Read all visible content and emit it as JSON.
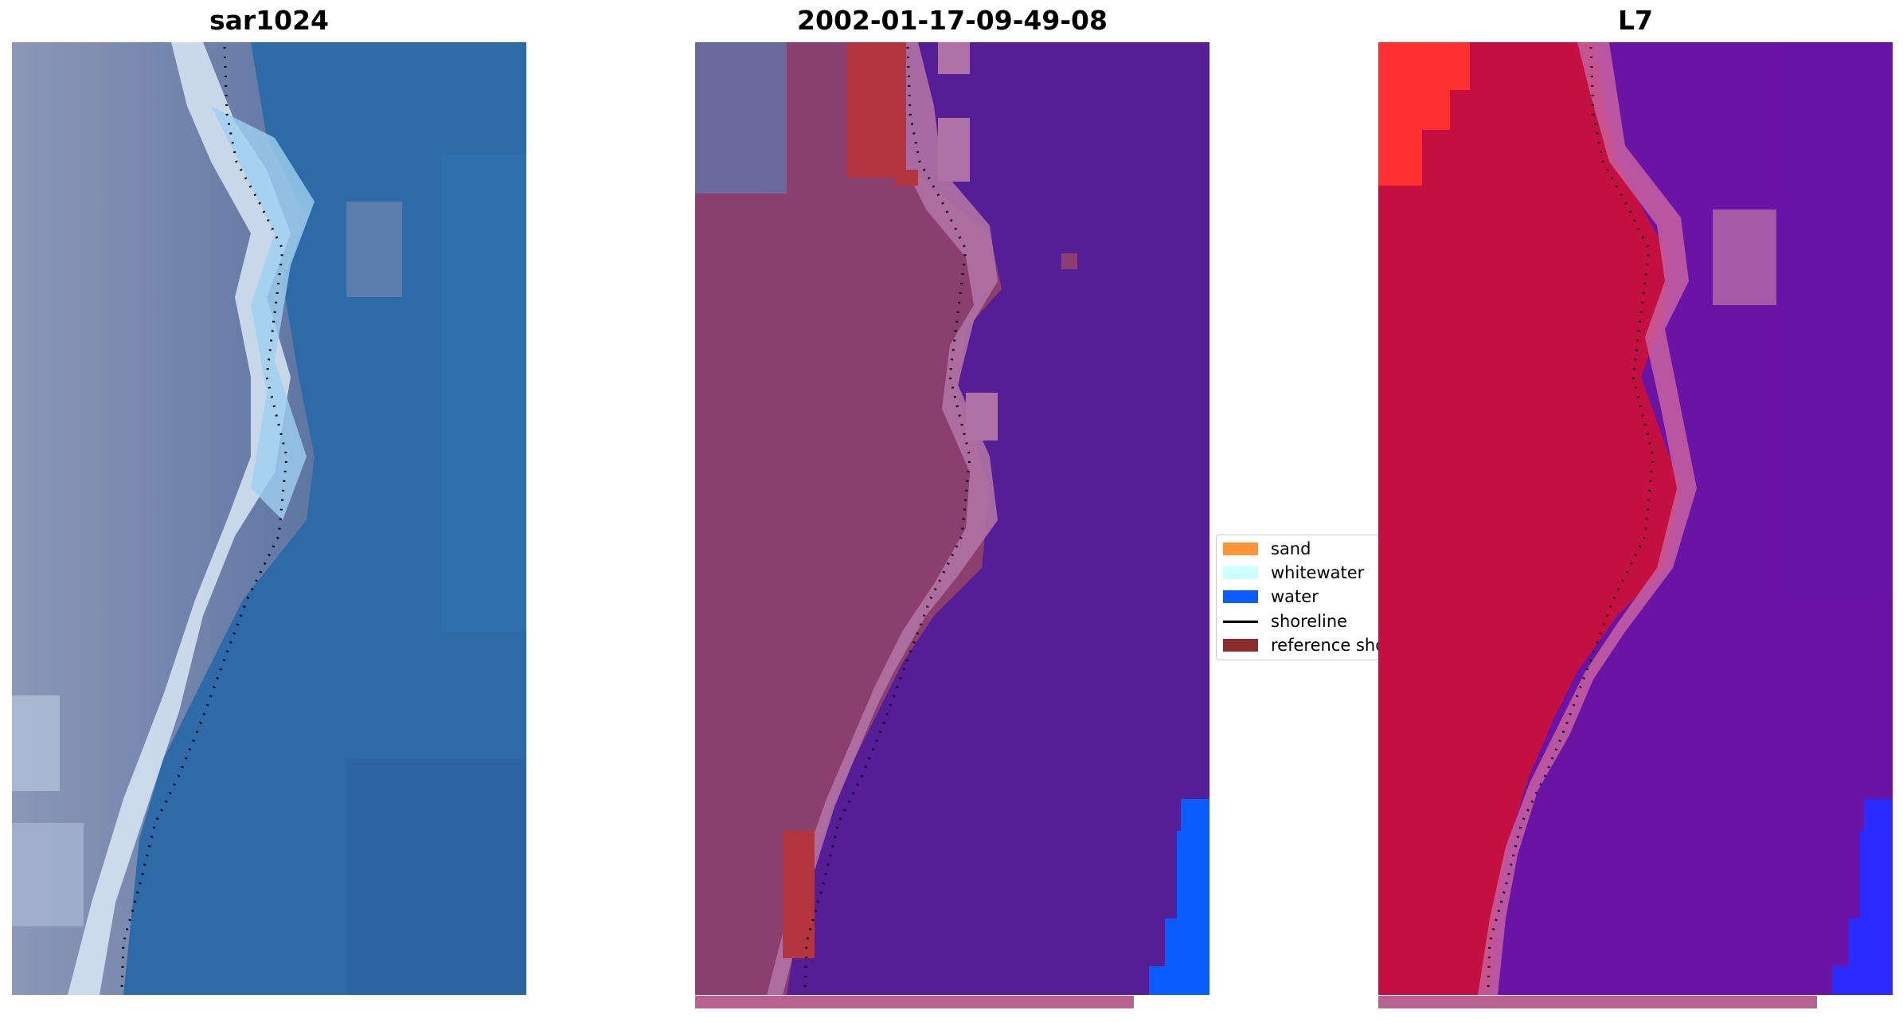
{
  "panels": [
    {
      "title": "sar1024",
      "image": "rgb-satellite-image"
    },
    {
      "title": "2002-01-17-09-49-08",
      "image": "classified-image-overlay"
    },
    {
      "title": "L7",
      "image": "mndwi-image"
    }
  ],
  "legend": {
    "items": [
      {
        "label": "sand",
        "color": "#ff9438",
        "kind": "patch"
      },
      {
        "label": "whitewater",
        "color": "#ccffff",
        "kind": "patch"
      },
      {
        "label": "water",
        "color": "#0a5cff",
        "kind": "patch"
      },
      {
        "label": "shoreline",
        "color": "#000000",
        "kind": "line"
      },
      {
        "label": "reference shoreline",
        "color": "#8b2c2f",
        "kind": "patch"
      }
    ]
  },
  "colors": {
    "rgb_land": "#6f80a6",
    "rgb_water": "#2f6aa6",
    "rgb_surf": "#cfe6f5",
    "class_land": "#8a3f6e",
    "class_water": "#561e96",
    "class_ref": "#b43540",
    "class_pink": "#b072a4",
    "class_blue": "#0a5cff",
    "mndwi_land": "#c41040",
    "mndwi_water": "#6a14a6",
    "mndwi_bright_red": "#ff3030",
    "mndwi_blue": "#2a2cff",
    "strip": "#b8628f"
  }
}
